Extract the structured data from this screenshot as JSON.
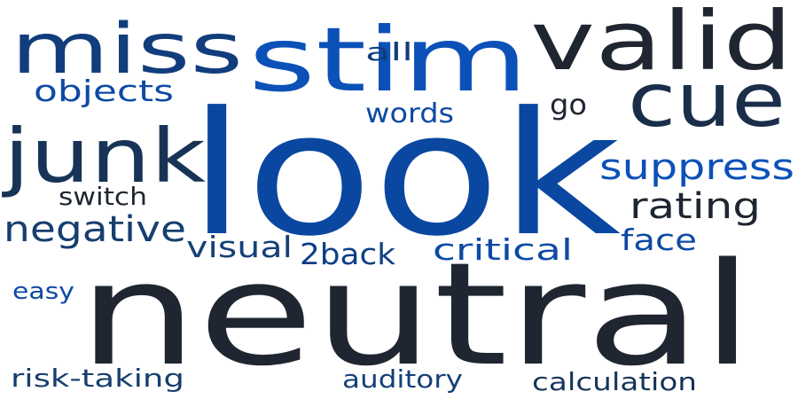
{
  "words": [
    {
      "text": "look",
      "color": "#0a47a0"
    },
    {
      "text": "neutral",
      "color": "#1f2631"
    },
    {
      "text": "stim",
      "color": "#0b51b8"
    },
    {
      "text": "valid",
      "color": "#1f2631"
    },
    {
      "text": "miss",
      "color": "#113d7c"
    },
    {
      "text": "junk",
      "color": "#173457"
    },
    {
      "text": "cue",
      "color": "#1a2e4a"
    },
    {
      "text": "suppress",
      "color": "#0b51b8"
    },
    {
      "text": "negative",
      "color": "#173e6f"
    },
    {
      "text": "rating",
      "color": "#1f2631"
    },
    {
      "text": "objects",
      "color": "#0d4aa4"
    },
    {
      "text": "critical",
      "color": "#0d4aa4"
    },
    {
      "text": "2back",
      "color": "#0e3f86"
    },
    {
      "text": "visual",
      "color": "#154077"
    },
    {
      "text": "face",
      "color": "#0d4aa4"
    },
    {
      "text": "words",
      "color": "#0d4aa4"
    },
    {
      "text": "switch",
      "color": "#1f2631"
    },
    {
      "text": "all",
      "color": "#113d7c"
    },
    {
      "text": "go",
      "color": "#1f2631"
    },
    {
      "text": "risk-taking",
      "color": "#173e6f"
    },
    {
      "text": "calculation",
      "color": "#173457"
    },
    {
      "text": "auditory",
      "color": "#154077"
    },
    {
      "text": "easy",
      "color": "#0d4aa4"
    }
  ]
}
